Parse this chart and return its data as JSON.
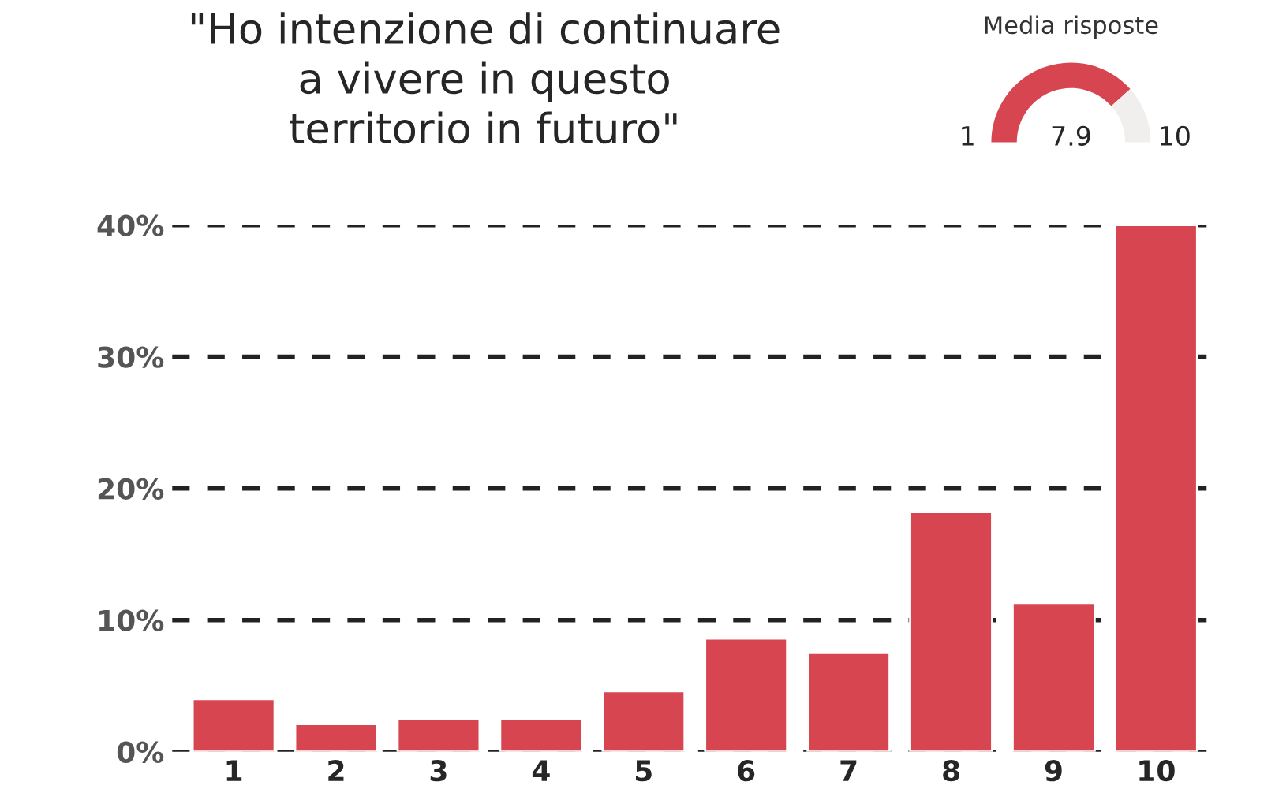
{
  "chart_data": [
    {
      "type": "bar",
      "title": "\"Ho intenzione di continuare\na vivere in questo\nterritorio in futuro\"",
      "categories": [
        "1",
        "2",
        "3",
        "4",
        "5",
        "6",
        "7",
        "8",
        "9",
        "10"
      ],
      "values": [
        4.0,
        2.1,
        2.5,
        2.5,
        4.6,
        8.6,
        7.5,
        18.2,
        11.3,
        40.0
      ],
      "color": "#d64550",
      "ylim": [
        0,
        40
      ],
      "yticks": [
        {
          "value": 0,
          "label": "0%"
        },
        {
          "value": 10,
          "label": "10%"
        },
        {
          "value": 20,
          "label": "20%"
        },
        {
          "value": 30,
          "label": "30%"
        },
        {
          "value": 40,
          "label": "40%"
        }
      ],
      "grid": "y",
      "line_style": "dashed"
    },
    {
      "type": "donut",
      "title": "Media risposte",
      "categories": [
        null,
        null
      ],
      "values": [
        76.7,
        23.3
      ],
      "colors": [
        "#d64550",
        "#f0efee"
      ],
      "annotations": [
        "1",
        "7.9",
        "10"
      ]
    }
  ]
}
